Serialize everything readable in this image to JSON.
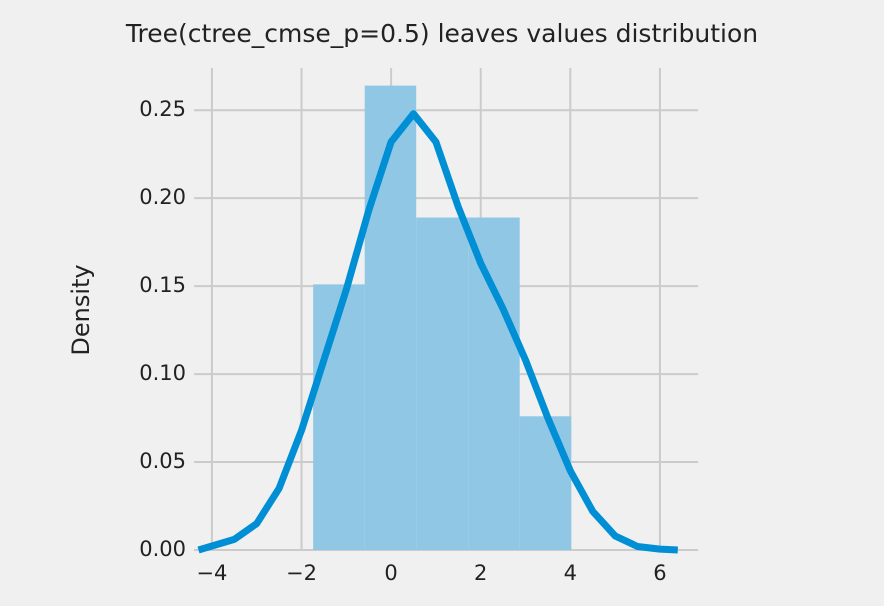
{
  "chart_data": {
    "type": "histogram",
    "title": "Tree(ctree_cmse_p=0.5) leaves values distribution",
    "ylabel": "Density",
    "bins": [
      -1.74,
      -0.59,
      0.56,
      1.72,
      2.87,
      4.02
    ],
    "values": [
      0.151,
      0.264,
      0.189,
      0.189,
      0.076
    ],
    "color": "#8fc7e5",
    "kde": {
      "color": "#008fd5",
      "x": [
        -4.3,
        -3.5,
        -3,
        -2.5,
        -2,
        -1.5,
        -1,
        -0.5,
        0,
        0.5,
        1,
        1.5,
        2,
        2.5,
        3,
        3.5,
        4,
        4.5,
        5,
        5.5,
        6,
        6.4
      ],
      "values": [
        0,
        0.006,
        0.015,
        0.035,
        0.068,
        0.108,
        0.148,
        0.193,
        0.232,
        0.248,
        0.232,
        0.195,
        0.163,
        0.137,
        0.108,
        0.075,
        0.045,
        0.022,
        0.008,
        0.002,
        0.0005,
        0
      ]
    },
    "xlim": [
      -4.4,
      6.85
    ],
    "ylim": [
      0,
      0.274
    ],
    "xticks": [
      {
        "value": -4,
        "label": "−4"
      },
      {
        "value": -2,
        "label": "−2"
      },
      0,
      2,
      4,
      6
    ],
    "yticks": [
      {
        "value": 0,
        "label": "0.00"
      },
      {
        "value": 0.05,
        "label": "0.05"
      },
      {
        "value": 0.1,
        "label": "0.10"
      },
      {
        "value": 0.15,
        "label": "0.15"
      },
      {
        "value": 0.2,
        "label": "0.20"
      },
      {
        "value": 0.25,
        "label": "0.25"
      }
    ],
    "grid": true
  }
}
